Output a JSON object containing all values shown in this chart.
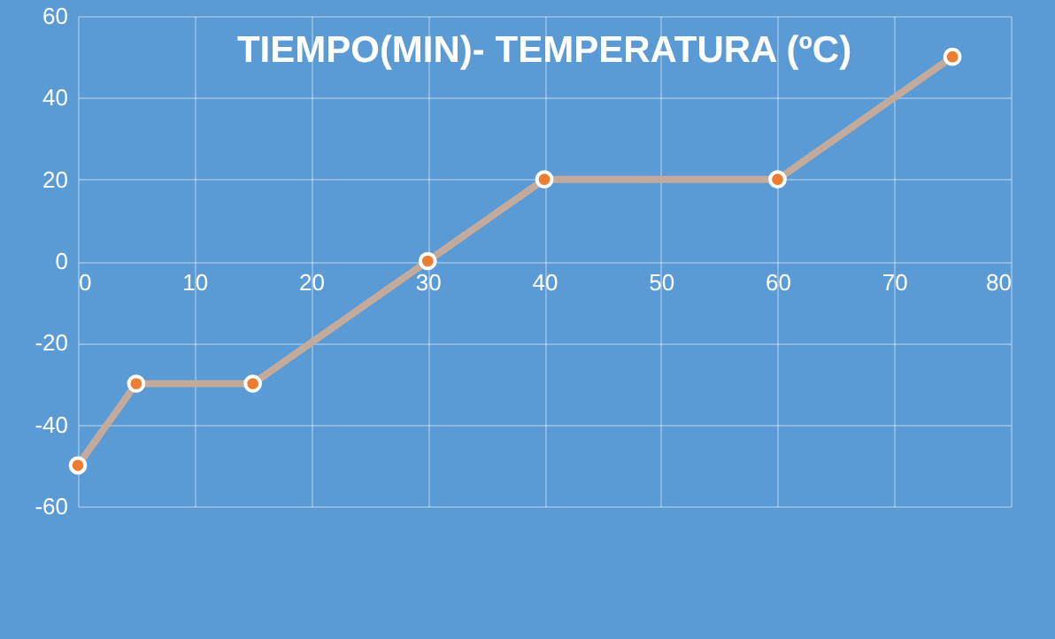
{
  "chart_data": {
    "type": "line",
    "title": "TIEMPO(MIN)- TEMPERATURA (ºC)",
    "x": [
      0,
      5,
      15,
      30,
      40,
      60,
      75
    ],
    "series": [
      {
        "color": "#c3aa9b",
        "values": [
          -50,
          -30,
          -30,
          0,
          20,
          20,
          50
        ]
      }
    ],
    "xlim": [
      0,
      80
    ],
    "xticks": [
      0,
      10,
      20,
      30,
      40,
      50,
      60,
      70,
      80
    ],
    "ylim": [
      -60,
      60
    ],
    "yticks": [
      -60,
      -40,
      -20,
      0,
      20,
      40,
      60
    ],
    "grid": true,
    "marker": "circle",
    "line_style": "solid"
  }
}
